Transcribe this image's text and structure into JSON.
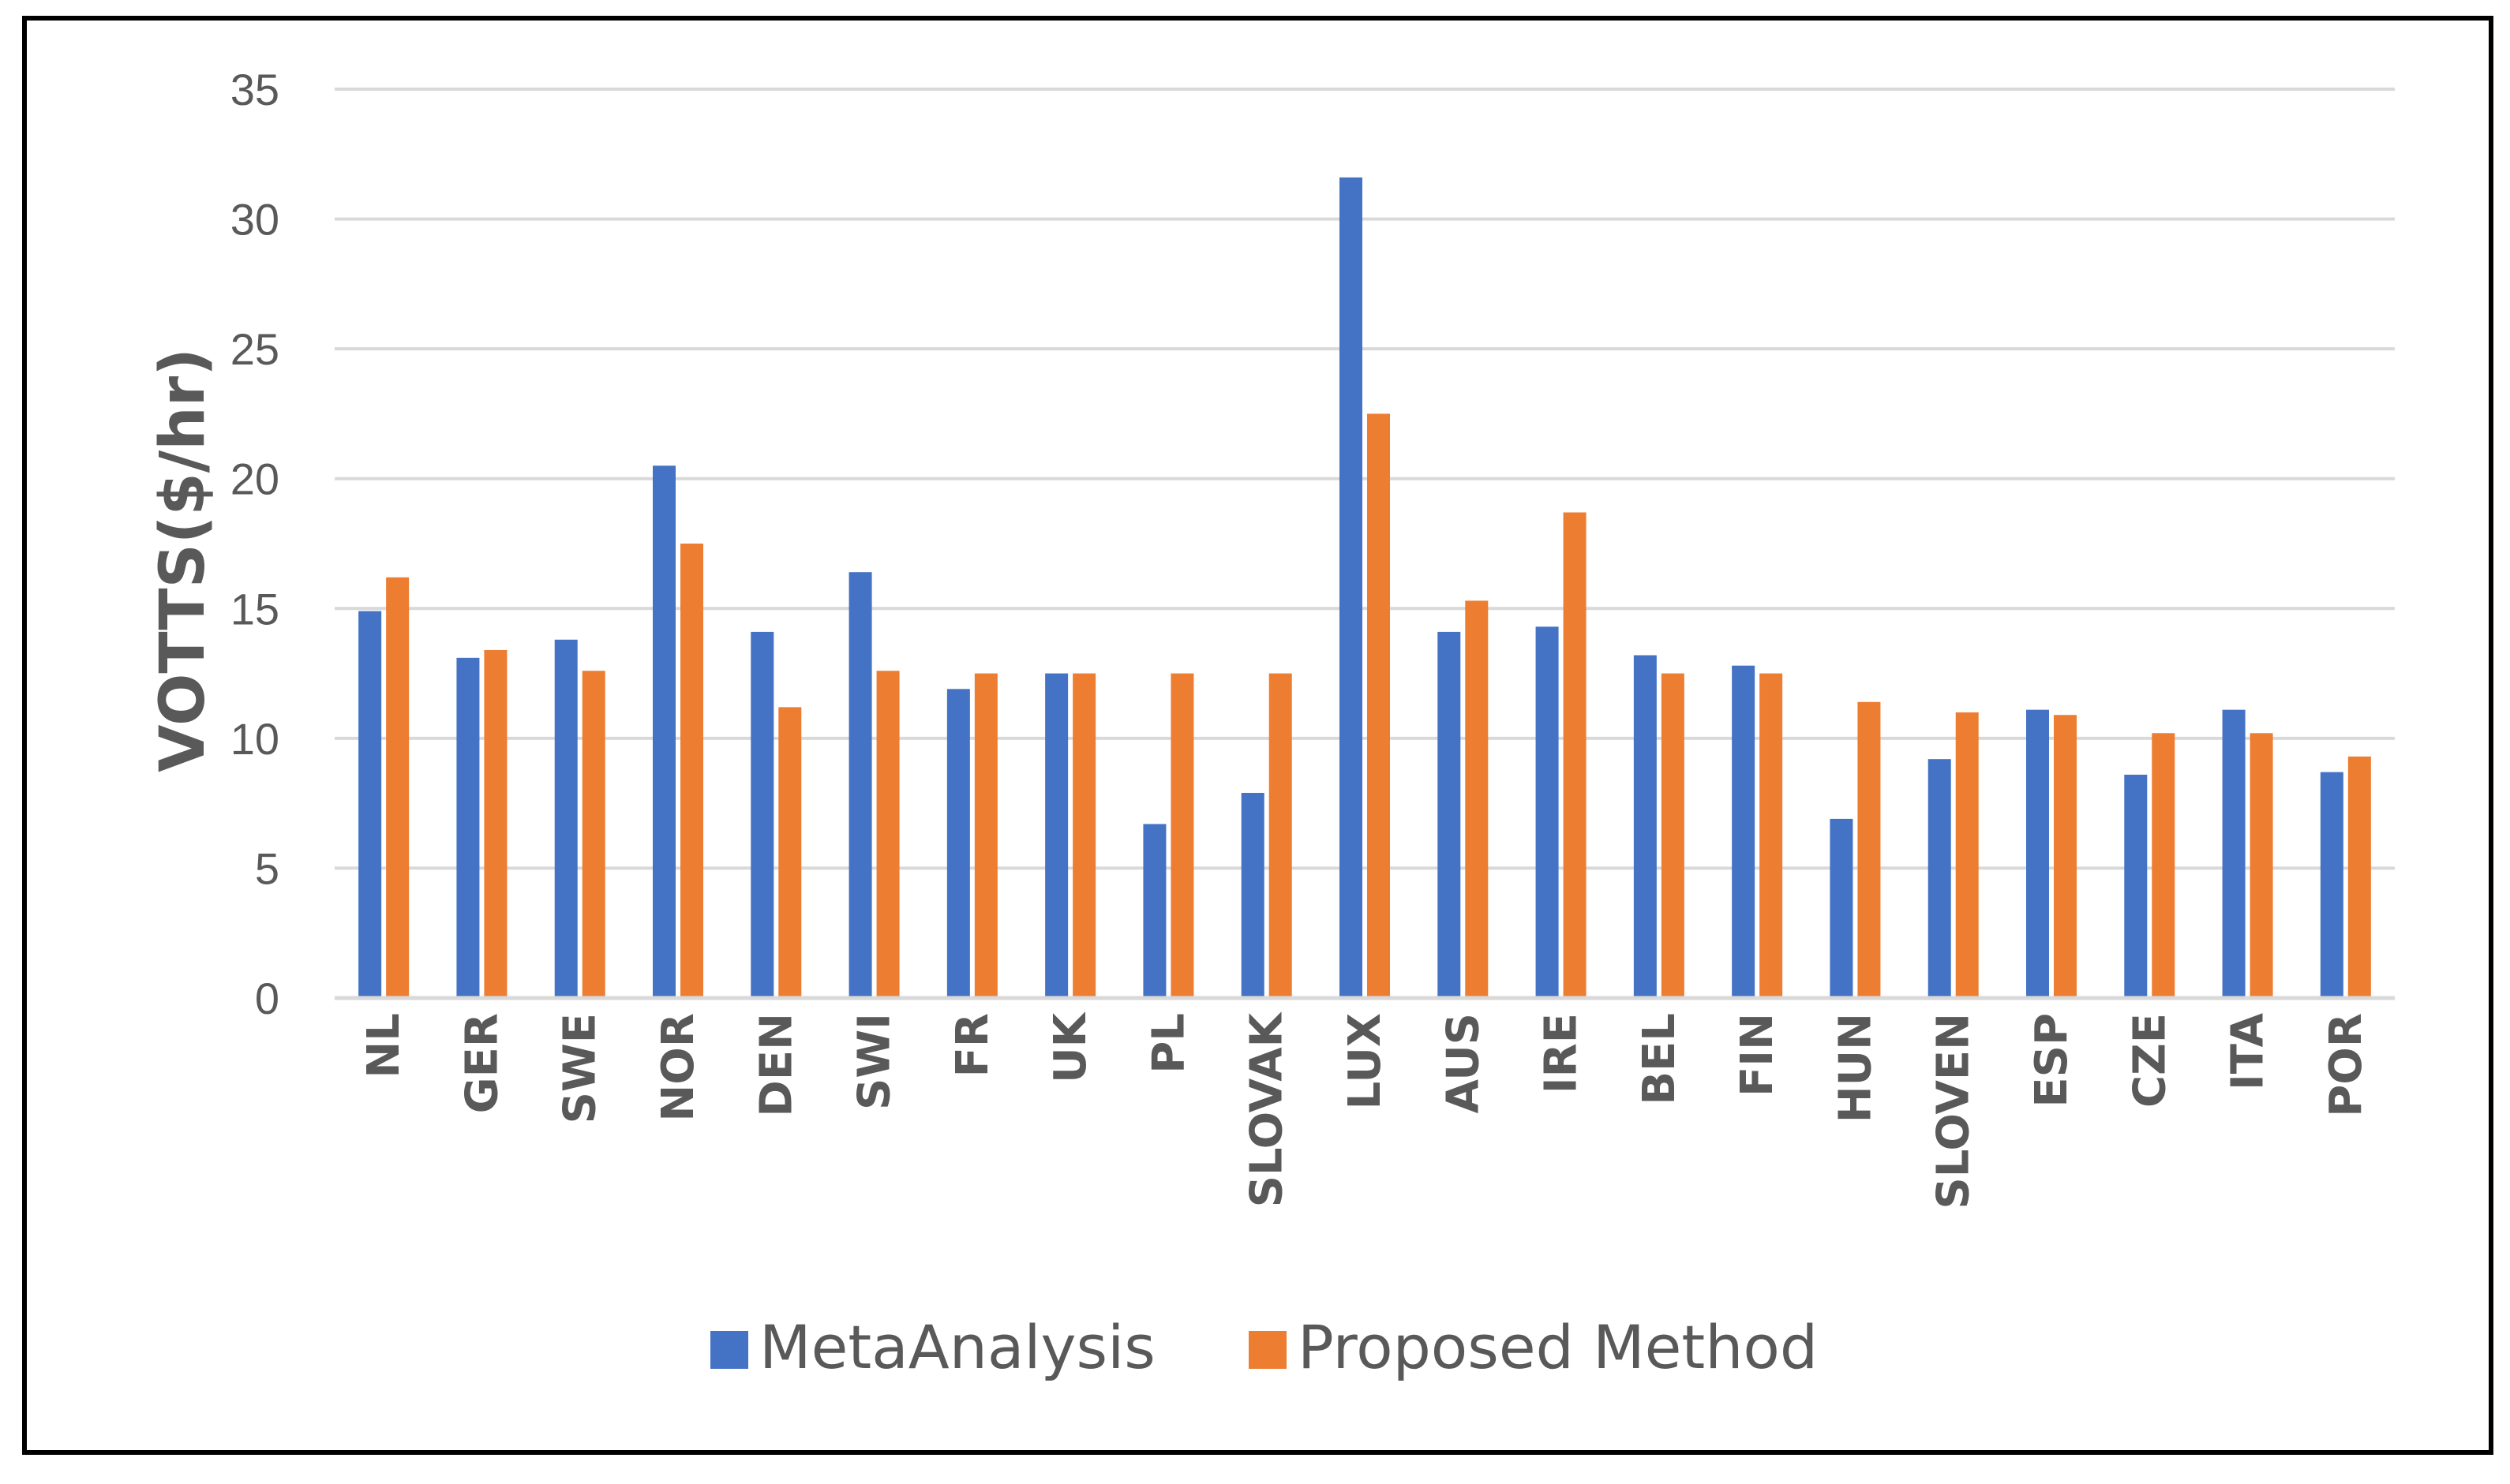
{
  "chart_data": {
    "type": "bar",
    "title": "",
    "xlabel": "",
    "ylabel": "VOTTS($/hr)",
    "ylim": [
      0,
      35
    ],
    "yticks": [
      "0",
      "5",
      "10",
      "15",
      "20",
      "25",
      "30",
      "35"
    ],
    "grid": true,
    "legend_position": "bottom",
    "categories": [
      "NL",
      "GER",
      "SWE",
      "NOR",
      "DEN",
      "SWI",
      "FR",
      "UK",
      "PL",
      "SLOVAK",
      "LUX",
      "AUS",
      "IRE",
      "BEL",
      "FIN",
      "HUN",
      "SLOVEN",
      "ESP",
      "CZE",
      "ITA",
      "POR"
    ],
    "series": [
      {
        "name": "MetaAnalysis",
        "color": "#4472C4",
        "values": [
          14.9,
          13.1,
          13.8,
          20.5,
          14.1,
          16.4,
          11.9,
          12.5,
          6.7,
          7.9,
          31.6,
          14.1,
          14.3,
          13.2,
          12.8,
          6.9,
          9.2,
          11.1,
          8.6,
          11.1,
          8.7
        ]
      },
      {
        "name": "Proposed Method",
        "color": "#ED7D31",
        "values": [
          16.2,
          13.4,
          12.6,
          17.5,
          11.2,
          12.6,
          12.5,
          12.5,
          12.5,
          12.5,
          22.5,
          15.3,
          18.7,
          12.5,
          12.5,
          11.4,
          11.0,
          10.9,
          10.2,
          10.2,
          9.3
        ]
      }
    ]
  }
}
